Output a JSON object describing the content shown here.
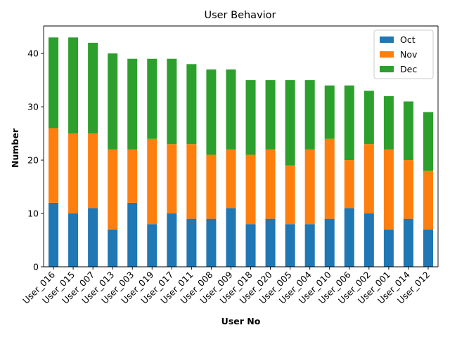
{
  "chart_data": {
    "type": "bar",
    "stacked": true,
    "title": "User Behavior",
    "xlabel": "User No",
    "ylabel": "Number",
    "categories": [
      "User_016",
      "User_015",
      "User_007",
      "User_013",
      "User_003",
      "User_019",
      "User_017",
      "User_011",
      "User_008",
      "User_009",
      "User_018",
      "User_020",
      "User_005",
      "User_004",
      "User_010",
      "User_006",
      "User_002",
      "User_001",
      "User_014",
      "User_012"
    ],
    "series": [
      {
        "name": "Oct",
        "color": "#1f77b4",
        "values": [
          12,
          10,
          11,
          7,
          12,
          8,
          10,
          9,
          9,
          11,
          8,
          9,
          8,
          8,
          9,
          11,
          10,
          7,
          9,
          7
        ]
      },
      {
        "name": "Nov",
        "color": "#ff7f0e",
        "values": [
          14,
          15,
          14,
          15,
          10,
          16,
          13,
          14,
          12,
          11,
          13,
          13,
          11,
          14,
          15,
          9,
          13,
          15,
          11,
          11
        ]
      },
      {
        "name": "Dec",
        "color": "#2ca02c",
        "values": [
          17,
          18,
          17,
          18,
          17,
          15,
          16,
          15,
          16,
          15,
          14,
          13,
          16,
          13,
          10,
          14,
          10,
          10,
          11,
          11
        ]
      }
    ],
    "ylim": [
      0,
      45.15
    ],
    "yticks": [
      "0",
      "10",
      "20",
      "30",
      "40"
    ],
    "grid": false,
    "legend_position": "top-right"
  }
}
